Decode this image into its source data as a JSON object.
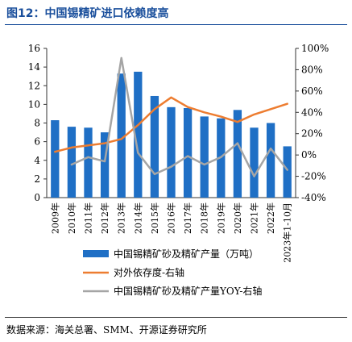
{
  "title": "图12：中国锡精矿进口依赖度高",
  "source": "数据来源：海关总署、SMM、开源证券研究所",
  "chart_data": {
    "type": "bar",
    "categories": [
      "2009年",
      "2010年",
      "2011年",
      "2012年",
      "2013年",
      "2014年",
      "2015年",
      "2016年",
      "2017年",
      "2018年",
      "2019年",
      "2020年",
      "2021年",
      "2022年",
      "2023年1-10月"
    ],
    "left_axis": {
      "ylim": [
        0,
        16
      ],
      "ticks": [
        "0",
        "2",
        "4",
        "6",
        "8",
        "10",
        "12",
        "14",
        "16"
      ]
    },
    "right_axis": {
      "ylim": [
        -40,
        100
      ],
      "ticks": [
        "-40%",
        "-20%",
        "0%",
        "20%",
        "40%",
        "60%",
        "80%",
        "100%"
      ]
    },
    "series": [
      {
        "name": "中国锡精矿砂及精矿产量（万吨）",
        "type": "bar",
        "axis": "left",
        "color": "#1f6fc5",
        "values": [
          8.3,
          7.6,
          7.5,
          7.0,
          13.3,
          13.5,
          10.9,
          9.7,
          9.6,
          8.7,
          8.5,
          9.4,
          7.5,
          8.0,
          5.5
        ]
      },
      {
        "name": "对外依存度-右轴",
        "type": "line",
        "axis": "right",
        "color": "#ed7d31",
        "values": [
          3,
          7,
          9,
          11,
          15,
          28,
          43,
          54,
          45,
          40,
          36,
          31,
          38,
          43,
          48
        ]
      },
      {
        "name": "中国锡精矿砂及精矿产量YOY-右轴",
        "type": "line",
        "axis": "right",
        "color": "#a5a5a5",
        "values": [
          null,
          -9,
          -2,
          -6,
          91,
          2,
          -18,
          -11,
          -1,
          -9,
          -2,
          11,
          -20,
          6,
          -14
        ]
      }
    ]
  }
}
